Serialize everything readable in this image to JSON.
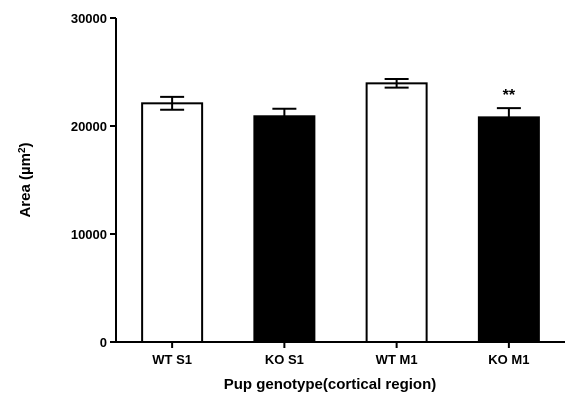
{
  "chart_data": {
    "type": "bar",
    "title": "",
    "xlabel": "Pup genotype(cortical region)",
    "ylabel_main": "Area (µm",
    "ylabel_sup": "2",
    "ylabel_end": ")",
    "ylim": [
      0,
      30000
    ],
    "yticks": [
      "0",
      "10000",
      "20000",
      "30000"
    ],
    "categories": [
      "WT S1",
      "KO S1",
      "WT M1",
      "KO M1"
    ],
    "values": [
      22100,
      20900,
      23950,
      20800
    ],
    "errors": [
      600,
      700,
      400,
      850
    ],
    "fills": [
      "#ffffff",
      "#000000",
      "#ffffff",
      "#000000"
    ],
    "annotations": [
      {
        "category": "KO M1",
        "text": "**"
      }
    ],
    "grid": false,
    "legend": "none"
  }
}
